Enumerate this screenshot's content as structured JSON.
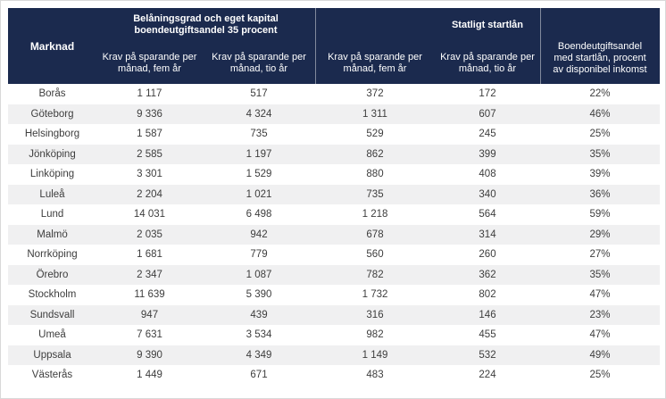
{
  "colors": {
    "header_bg": "#1b2a4e",
    "header_text": "#ffffff",
    "row_stripe": "#f0f0f1",
    "body_text": "#3d3d3d"
  },
  "table": {
    "corner_header": "Marknad",
    "groups": [
      {
        "label": "Belåningsgrad och eget kapital boendeutgiftsandel 35 procent"
      },
      {
        "label": "Statligt startlån"
      }
    ],
    "sub_headers": [
      "Krav på sparande per månad, fem år",
      "Krav på sparande per månad, tio år",
      "Krav på sparande per månad, fem år",
      "Krav på sparande per månad, tio år"
    ],
    "last_column_header": "Boendeutgiftsandel med startlån, procent av disponibel inkomst",
    "rows": [
      {
        "market": "Borås",
        "values": [
          "1 117",
          "517",
          "372",
          "172",
          "22%"
        ]
      },
      {
        "market": "Göteborg",
        "values": [
          "9 336",
          "4 324",
          "1 311",
          "607",
          "46%"
        ]
      },
      {
        "market": "Helsingborg",
        "values": [
          "1 587",
          "735",
          "529",
          "245",
          "25%"
        ]
      },
      {
        "market": "Jönköping",
        "values": [
          "2 585",
          "1 197",
          "862",
          "399",
          "35%"
        ]
      },
      {
        "market": "Linköping",
        "values": [
          "3 301",
          "1 529",
          "880",
          "408",
          "39%"
        ]
      },
      {
        "market": "Luleå",
        "values": [
          "2 204",
          "1 021",
          "735",
          "340",
          "36%"
        ]
      },
      {
        "market": "Lund",
        "values": [
          "14 031",
          "6 498",
          "1 218",
          "564",
          "59%"
        ]
      },
      {
        "market": "Malmö",
        "values": [
          "2 035",
          "942",
          "678",
          "314",
          "29%"
        ]
      },
      {
        "market": "Norrköping",
        "values": [
          "1 681",
          "779",
          "560",
          "260",
          "27%"
        ]
      },
      {
        "market": "Örebro",
        "values": [
          "2 347",
          "1 087",
          "782",
          "362",
          "35%"
        ]
      },
      {
        "market": "Stockholm",
        "values": [
          "11 639",
          "5 390",
          "1 732",
          "802",
          "47%"
        ]
      },
      {
        "market": "Sundsvall",
        "values": [
          "947",
          "439",
          "316",
          "146",
          "23%"
        ]
      },
      {
        "market": "Umeå",
        "values": [
          "7 631",
          "3 534",
          "982",
          "455",
          "47%"
        ]
      },
      {
        "market": "Uppsala",
        "values": [
          "9 390",
          "4 349",
          "1 149",
          "532",
          "49%"
        ]
      },
      {
        "market": "Västerås",
        "values": [
          "1 449",
          "671",
          "483",
          "224",
          "25%"
        ]
      }
    ]
  },
  "chart_data": {
    "type": "table",
    "columns": [
      "Marknad",
      "Belåningsgrad och eget kapital boendeutgiftsandel 35 procent — Krav på sparande per månad, fem år",
      "Belåningsgrad och eget kapital boendeutgiftsandel 35 procent — Krav på sparande per månad, tio år",
      "Statligt startlån — Krav på sparande per månad, fem år",
      "Statligt startlån — Krav på sparande per månad, tio år",
      "Boendeutgiftsandel med startlån, procent av disponibel inkomst"
    ],
    "rows": [
      [
        "Borås",
        1117,
        517,
        372,
        172,
        "22%"
      ],
      [
        "Göteborg",
        9336,
        4324,
        1311,
        607,
        "46%"
      ],
      [
        "Helsingborg",
        1587,
        735,
        529,
        245,
        "25%"
      ],
      [
        "Jönköping",
        2585,
        1197,
        862,
        399,
        "35%"
      ],
      [
        "Linköping",
        3301,
        1529,
        880,
        408,
        "39%"
      ],
      [
        "Luleå",
        2204,
        1021,
        735,
        340,
        "36%"
      ],
      [
        "Lund",
        14031,
        6498,
        1218,
        564,
        "59%"
      ],
      [
        "Malmö",
        2035,
        942,
        678,
        314,
        "29%"
      ],
      [
        "Norrköping",
        1681,
        779,
        560,
        260,
        "27%"
      ],
      [
        "Örebro",
        2347,
        1087,
        782,
        362,
        "35%"
      ],
      [
        "Stockholm",
        11639,
        5390,
        1732,
        802,
        "47%"
      ],
      [
        "Sundsvall",
        947,
        439,
        316,
        146,
        "23%"
      ],
      [
        "Umeå",
        7631,
        3534,
        982,
        455,
        "47%"
      ],
      [
        "Uppsala",
        9390,
        4349,
        1149,
        532,
        "49%"
      ],
      [
        "Västerås",
        1449,
        671,
        483,
        224,
        "25%"
      ]
    ]
  }
}
